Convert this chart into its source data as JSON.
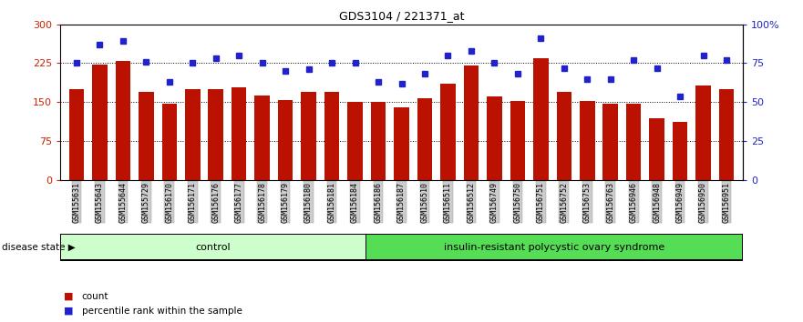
{
  "title": "GDS3104 / 221371_at",
  "samples": [
    "GSM155631",
    "GSM155643",
    "GSM155644",
    "GSM155729",
    "GSM156170",
    "GSM156171",
    "GSM156176",
    "GSM156177",
    "GSM156178",
    "GSM156179",
    "GSM156180",
    "GSM156181",
    "GSM156184",
    "GSM156186",
    "GSM156187",
    "GSM156510",
    "GSM156511",
    "GSM156512",
    "GSM156749",
    "GSM156750",
    "GSM156751",
    "GSM156752",
    "GSM156753",
    "GSM156763",
    "GSM156946",
    "GSM156948",
    "GSM156949",
    "GSM156950",
    "GSM156951"
  ],
  "counts": [
    175,
    222,
    230,
    170,
    148,
    175,
    175,
    178,
    163,
    155,
    170,
    170,
    150,
    150,
    140,
    157,
    185,
    220,
    162,
    153,
    235,
    170,
    153,
    148,
    148,
    120,
    113,
    183,
    175
  ],
  "percentiles": [
    75,
    87,
    89,
    76,
    63,
    75,
    78,
    80,
    75,
    70,
    71,
    75,
    75,
    63,
    62,
    68,
    80,
    83,
    75,
    68,
    91,
    72,
    65,
    65,
    77,
    72,
    54,
    80,
    77
  ],
  "group1_count": 13,
  "group1_label": "control",
  "group2_label": "insulin-resistant polycystic ovary syndrome",
  "bar_color": "#bb1100",
  "dot_color": "#2222cc",
  "ylim_left": [
    0,
    300
  ],
  "ylim_right": [
    0,
    100
  ],
  "yticks_left": [
    0,
    75,
    150,
    225,
    300
  ],
  "yticks_right": [
    0,
    25,
    50,
    75,
    100
  ],
  "ytick_labels_right": [
    "0",
    "25",
    "50",
    "75",
    "100%"
  ],
  "bg_color": "#ffffff",
  "tick_label_color_left": "#cc2200",
  "tick_label_color_right": "#2222cc",
  "legend_count_label": "count",
  "legend_pct_label": "percentile rank within the sample",
  "disease_state_label": "disease state",
  "group1_bg": "#ccffcc",
  "group2_bg": "#55dd55",
  "xticklabel_bg": "#cccccc",
  "gridline_color": "#000000",
  "spine_color": "#000000"
}
